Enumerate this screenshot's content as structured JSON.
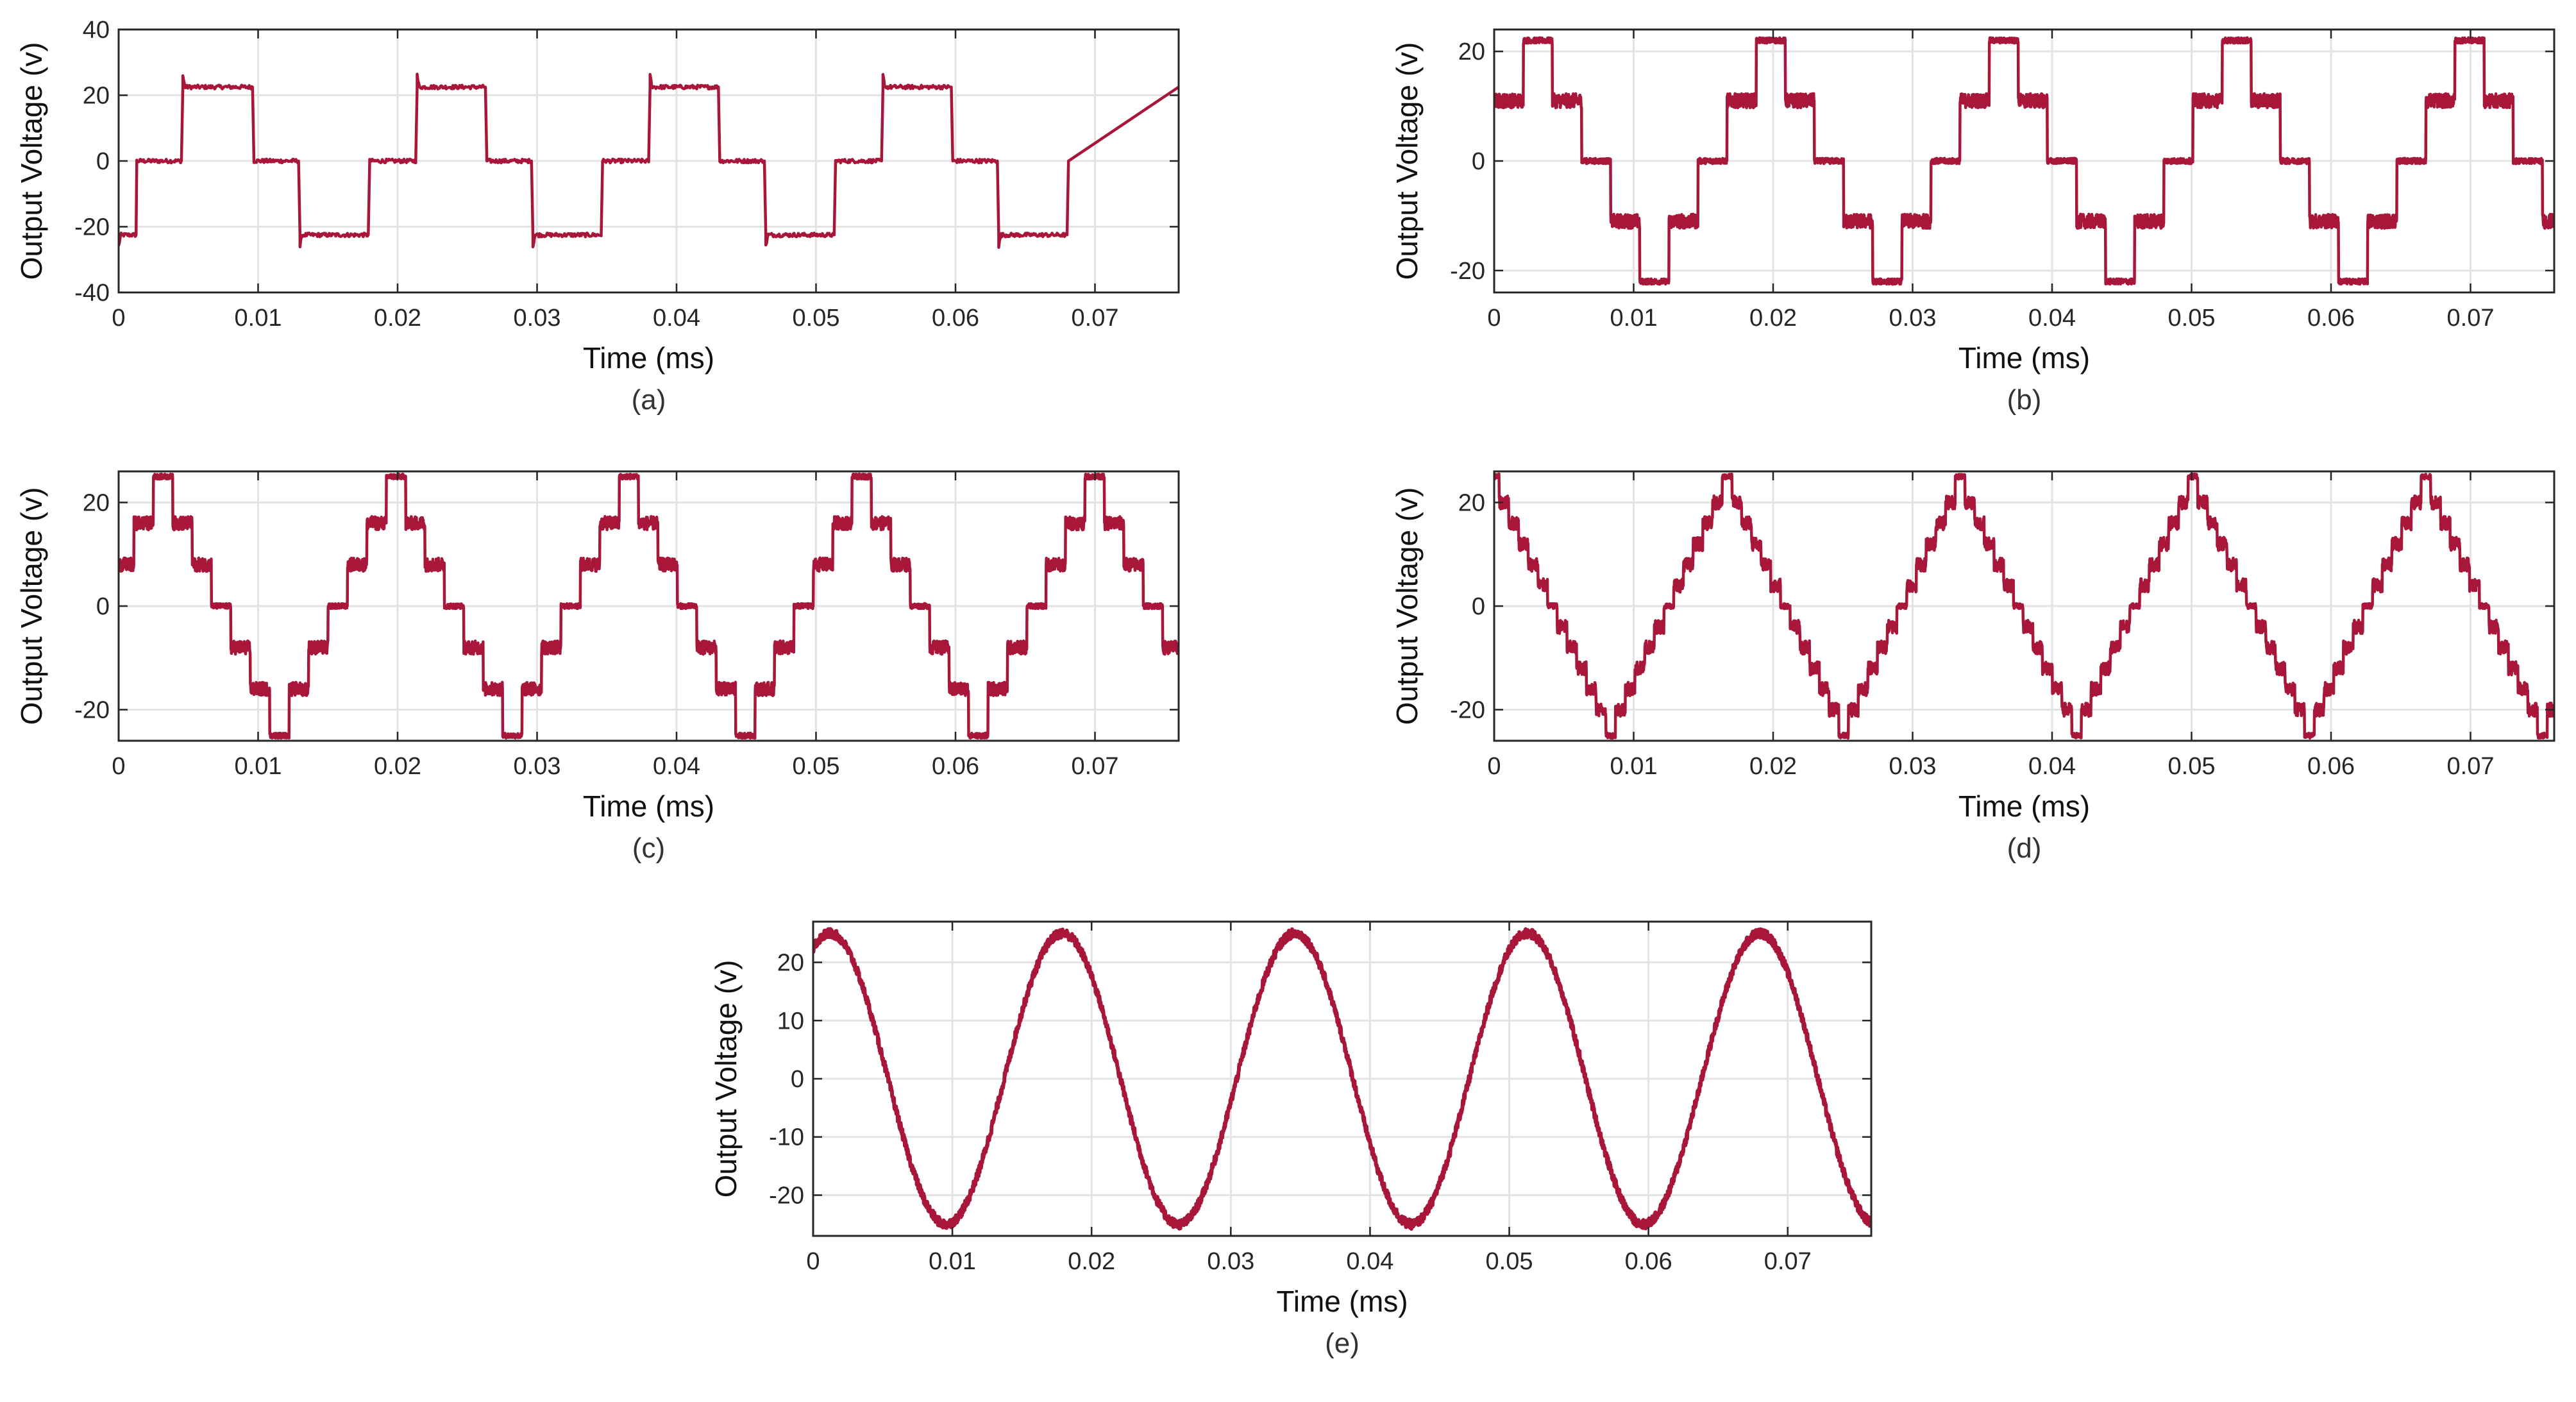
{
  "figure": {
    "line_color": "#A8173A",
    "grid_color": "#E3E3E3",
    "axis_color": "#262626"
  },
  "chart_data": [
    {
      "type": "line",
      "caption": "(a)",
      "xlabel": "Time (ms)",
      "ylabel": "Output Voltage (v)",
      "xlim": [
        0,
        0.076
      ],
      "ylim": [
        -40,
        40
      ],
      "xticks": [
        0,
        0.01,
        0.02,
        0.03,
        0.04,
        0.05,
        0.06,
        0.07
      ],
      "xtick_labels": [
        "0",
        "0.01",
        "0.02",
        "0.03",
        "0.04",
        "0.05",
        "0.06",
        "0.07"
      ],
      "yticks": [
        -40,
        -20,
        0,
        20,
        40
      ],
      "ytick_labels": [
        "-40",
        "-20",
        "0",
        "20",
        "40"
      ],
      "grid": true,
      "series": [
        {
          "waveform": "3-level stepped square wave",
          "period": 0.0167,
          "phase": 0.001,
          "levels": [
            0,
            22.5
          ],
          "overshoot": 3.5,
          "x": [
            0,
            0.00125,
            0.0013,
            0.0045,
            0.0046,
            0.0096,
            0.0097,
            0.0129,
            0.013,
            0.0179,
            0.018,
            0.0213,
            0.0214,
            0.0263,
            0.0264,
            0.0296,
            0.0297,
            0.0346,
            0.0347,
            0.038,
            0.0381,
            0.043,
            0.0431,
            0.0463,
            0.0464,
            0.0513,
            0.0514,
            0.0547,
            0.0548,
            0.0597,
            0.0598,
            0.063,
            0.0631,
            0.068,
            0.0681,
            0.076
          ],
          "y": [
            -22.5,
            -22.5,
            0,
            0,
            22.5,
            22.5,
            0,
            0,
            -22.5,
            -22.5,
            0,
            0,
            22.5,
            22.5,
            0,
            0,
            -22.5,
            -22.5,
            0,
            0,
            22.5,
            22.5,
            0,
            0,
            -22.5,
            -22.5,
            0,
            0,
            22.5,
            22.5,
            0,
            0,
            -22.5,
            -22.5,
            0,
            22.5
          ]
        }
      ]
    },
    {
      "type": "line",
      "caption": "(b)",
      "xlabel": "Time (ms)",
      "ylabel": "Output Voltage (v)",
      "xlim": [
        0,
        0.076
      ],
      "ylim": [
        -24,
        24
      ],
      "xticks": [
        0,
        0.01,
        0.02,
        0.03,
        0.04,
        0.05,
        0.06,
        0.07
      ],
      "xtick_labels": [
        "0",
        "0.01",
        "0.02",
        "0.03",
        "0.04",
        "0.05",
        "0.06",
        "0.07"
      ],
      "yticks": [
        -20,
        0,
        20
      ],
      "ytick_labels": [
        "-20",
        "0",
        "20"
      ],
      "grid": true,
      "series": [
        {
          "waveform": "5-level stepped wave",
          "period": 0.0167,
          "phase": 0.0,
          "levels": [
            0,
            11,
            22
          ]
        }
      ]
    },
    {
      "type": "line",
      "caption": "(c)",
      "xlabel": "Time (ms)",
      "ylabel": "Output Voltage (v)",
      "xlim": [
        0,
        0.076
      ],
      "ylim": [
        -26,
        26
      ],
      "xticks": [
        0,
        0.01,
        0.02,
        0.03,
        0.04,
        0.05,
        0.06,
        0.07
      ],
      "xtick_labels": [
        "0",
        "0.01",
        "0.02",
        "0.03",
        "0.04",
        "0.05",
        "0.06",
        "0.07"
      ],
      "yticks": [
        -20,
        0,
        20
      ],
      "ytick_labels": [
        "-20",
        "0",
        "20"
      ],
      "grid": true,
      "series": [
        {
          "waveform": "9-level stepped wave",
          "period": 0.0167,
          "phase": -0.0003,
          "levels": [
            0,
            8,
            16,
            25
          ]
        }
      ]
    },
    {
      "type": "line",
      "caption": "(d)",
      "xlabel": "Time (ms)",
      "ylabel": "Output Voltage (v)",
      "xlim": [
        0,
        0.076
      ],
      "ylim": [
        -26,
        26
      ],
      "xticks": [
        0,
        0.01,
        0.02,
        0.03,
        0.04,
        0.05,
        0.06,
        0.07
      ],
      "xtick_labels": [
        "0",
        "0.01",
        "0.02",
        "0.03",
        "0.04",
        "0.05",
        "0.06",
        "0.07"
      ],
      "yticks": [
        -20,
        0,
        20
      ],
      "ytick_labels": [
        "-20",
        "0",
        "20"
      ],
      "grid": true,
      "series": [
        {
          "waveform": "multilevel stepped triangular wave",
          "period": 0.0167,
          "phase": 0.0,
          "levels": [
            0,
            4,
            8,
            12,
            16,
            20,
            25
          ]
        }
      ]
    },
    {
      "type": "line",
      "caption": "(e)",
      "xlabel": "Time (ms)",
      "ylabel": "Output Voltage (v)",
      "xlim": [
        0,
        0.076
      ],
      "ylim": [
        -27,
        27
      ],
      "xticks": [
        0,
        0.01,
        0.02,
        0.03,
        0.04,
        0.05,
        0.06,
        0.07
      ],
      "xtick_labels": [
        "0",
        "0.01",
        "0.02",
        "0.03",
        "0.04",
        "0.05",
        "0.06",
        "0.07"
      ],
      "yticks": [
        -20,
        -10,
        0,
        10,
        20
      ],
      "ytick_labels": [
        "-20",
        "-10",
        "0",
        "10",
        "20"
      ],
      "grid": true,
      "series": [
        {
          "waveform": "sine",
          "amplitude": 25,
          "period": 0.0167,
          "peaks_x": [
            0.0012,
            0.0179,
            0.0346,
            0.0513,
            0.068
          ],
          "troughs_x": [
            0.0095,
            0.0262,
            0.0429,
            0.0596
          ]
        }
      ]
    }
  ]
}
